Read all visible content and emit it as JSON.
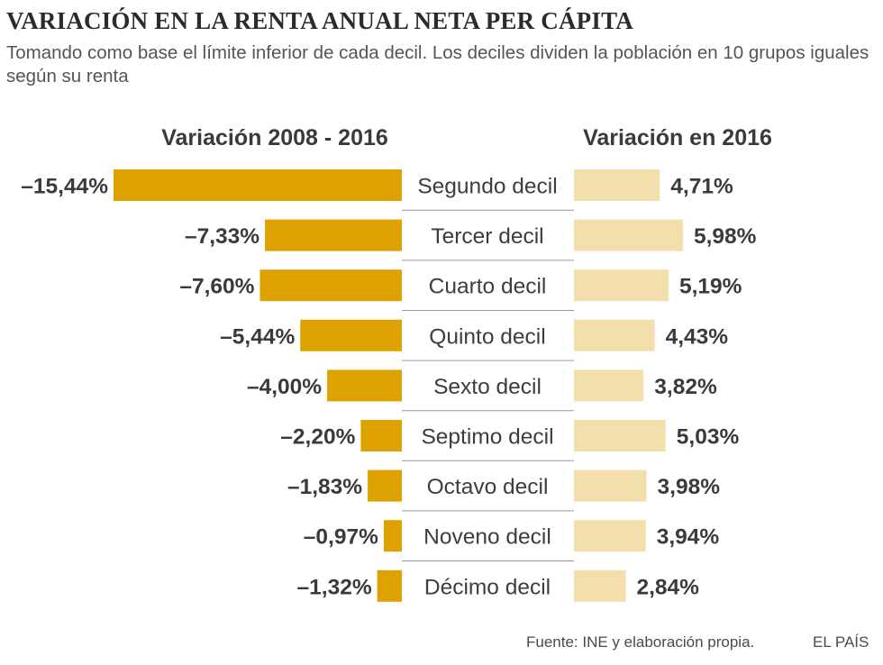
{
  "title": "VARIACIÓN EN LA RENTA ANUAL NETA PER CÁPITA",
  "subtitle": "Tomando como base el límite inferior de cada decil. Los deciles dividen la población en 10 grupos iguales según su renta",
  "footer": {
    "source": "Fuente: INE y elaboración propia.",
    "brand": "EL PAÍS"
  },
  "colors": {
    "left_bar": "#DDA200",
    "right_bar": "#F3DFAC",
    "divider": "#9a9a9a"
  },
  "chart_data": {
    "type": "bar",
    "orientation": "horizontal",
    "title": "VARIACIÓN EN LA RENTA ANUAL NETA PER CÁPITA",
    "categories": [
      "Segundo decil",
      "Tercer decil",
      "Cuarto decil",
      "Quinto decil",
      "Sexto decil",
      "Septimo decil",
      "Octavo decil",
      "Noveno decil",
      "Décimo decil"
    ],
    "series": [
      {
        "name": "Variación 2008 - 2016",
        "values": [
          -15.44,
          -7.33,
          -7.6,
          -5.44,
          -4.0,
          -2.2,
          -1.83,
          -0.97,
          -1.32
        ],
        "labels": [
          "–15,44%",
          "–7,33%",
          "–7,60%",
          "–5,44%",
          "–4,00%",
          "–2,20%",
          "–1,83%",
          "–0,97%",
          "–1,32%"
        ]
      },
      {
        "name": "Variación en 2016",
        "values": [
          4.71,
          5.98,
          5.19,
          4.43,
          3.82,
          5.03,
          3.98,
          3.94,
          2.84
        ],
        "labels": [
          "4,71%",
          "5,98%",
          "5,19%",
          "4,43%",
          "3,82%",
          "5,03%",
          "3,98%",
          "3,94%",
          "2,84%"
        ]
      }
    ],
    "xlabel": "",
    "ylabel": ""
  }
}
